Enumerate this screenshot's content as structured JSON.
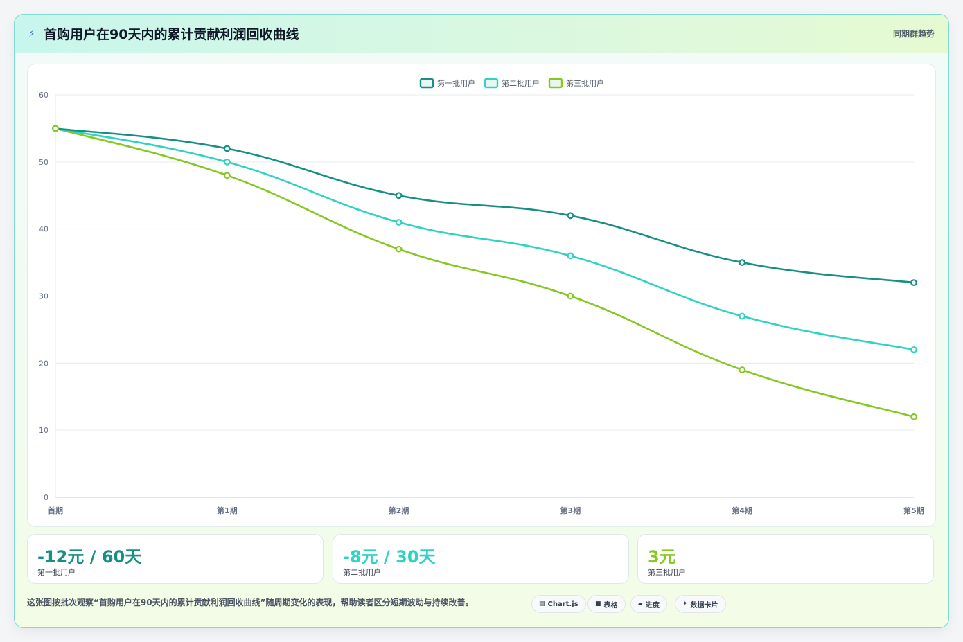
{
  "header": {
    "icon": "lightning-icon",
    "title": "首购用户在90天内的累计贡献利润回收曲线",
    "tag": "同期群趋势"
  },
  "chart_data": {
    "type": "line",
    "categories": [
      "首期",
      "第1期",
      "第2期",
      "第3期",
      "第4期",
      "第5期"
    ],
    "series": [
      {
        "name": "第一批用户",
        "color": "#178f84",
        "values": [
          55,
          52,
          45,
          42,
          35,
          32
        ]
      },
      {
        "name": "第二批用户",
        "color": "#30d2c4",
        "values": [
          55,
          50,
          41,
          36,
          27,
          22
        ]
      },
      {
        "name": "第三批用户",
        "color": "#86c822",
        "values": [
          55,
          48,
          37,
          30,
          19,
          12
        ]
      }
    ],
    "ylim": [
      0,
      60
    ],
    "yticks": [
      0,
      10,
      20,
      30,
      40,
      50,
      60
    ],
    "grid": true,
    "legend": "top-center",
    "smooth": true
  },
  "stats": [
    {
      "value": "-12元 / 60天",
      "label": "第一批用户",
      "color": "#178f84"
    },
    {
      "value": "-8元 / 30天",
      "label": "第二批用户",
      "color": "#30d2c4"
    },
    {
      "value": "3元",
      "label": "第三批用户",
      "color": "#86c822"
    }
  ],
  "footnote": "这张图按批次观察“首购用户在90天内的累计贡献利润回收曲线”随周期变化的表现，帮助读者区分短期波动与持续改善。",
  "pills": [
    {
      "icon": "chart-icon",
      "glyph": "▤",
      "label": "Chart.js"
    },
    {
      "icon": "table-icon",
      "glyph": "■",
      "label": "表格"
    },
    {
      "icon": "progress-icon",
      "glyph": "▰",
      "label": "进度"
    },
    {
      "icon": "card-icon",
      "glyph": "✦",
      "label": "数据卡片"
    }
  ]
}
